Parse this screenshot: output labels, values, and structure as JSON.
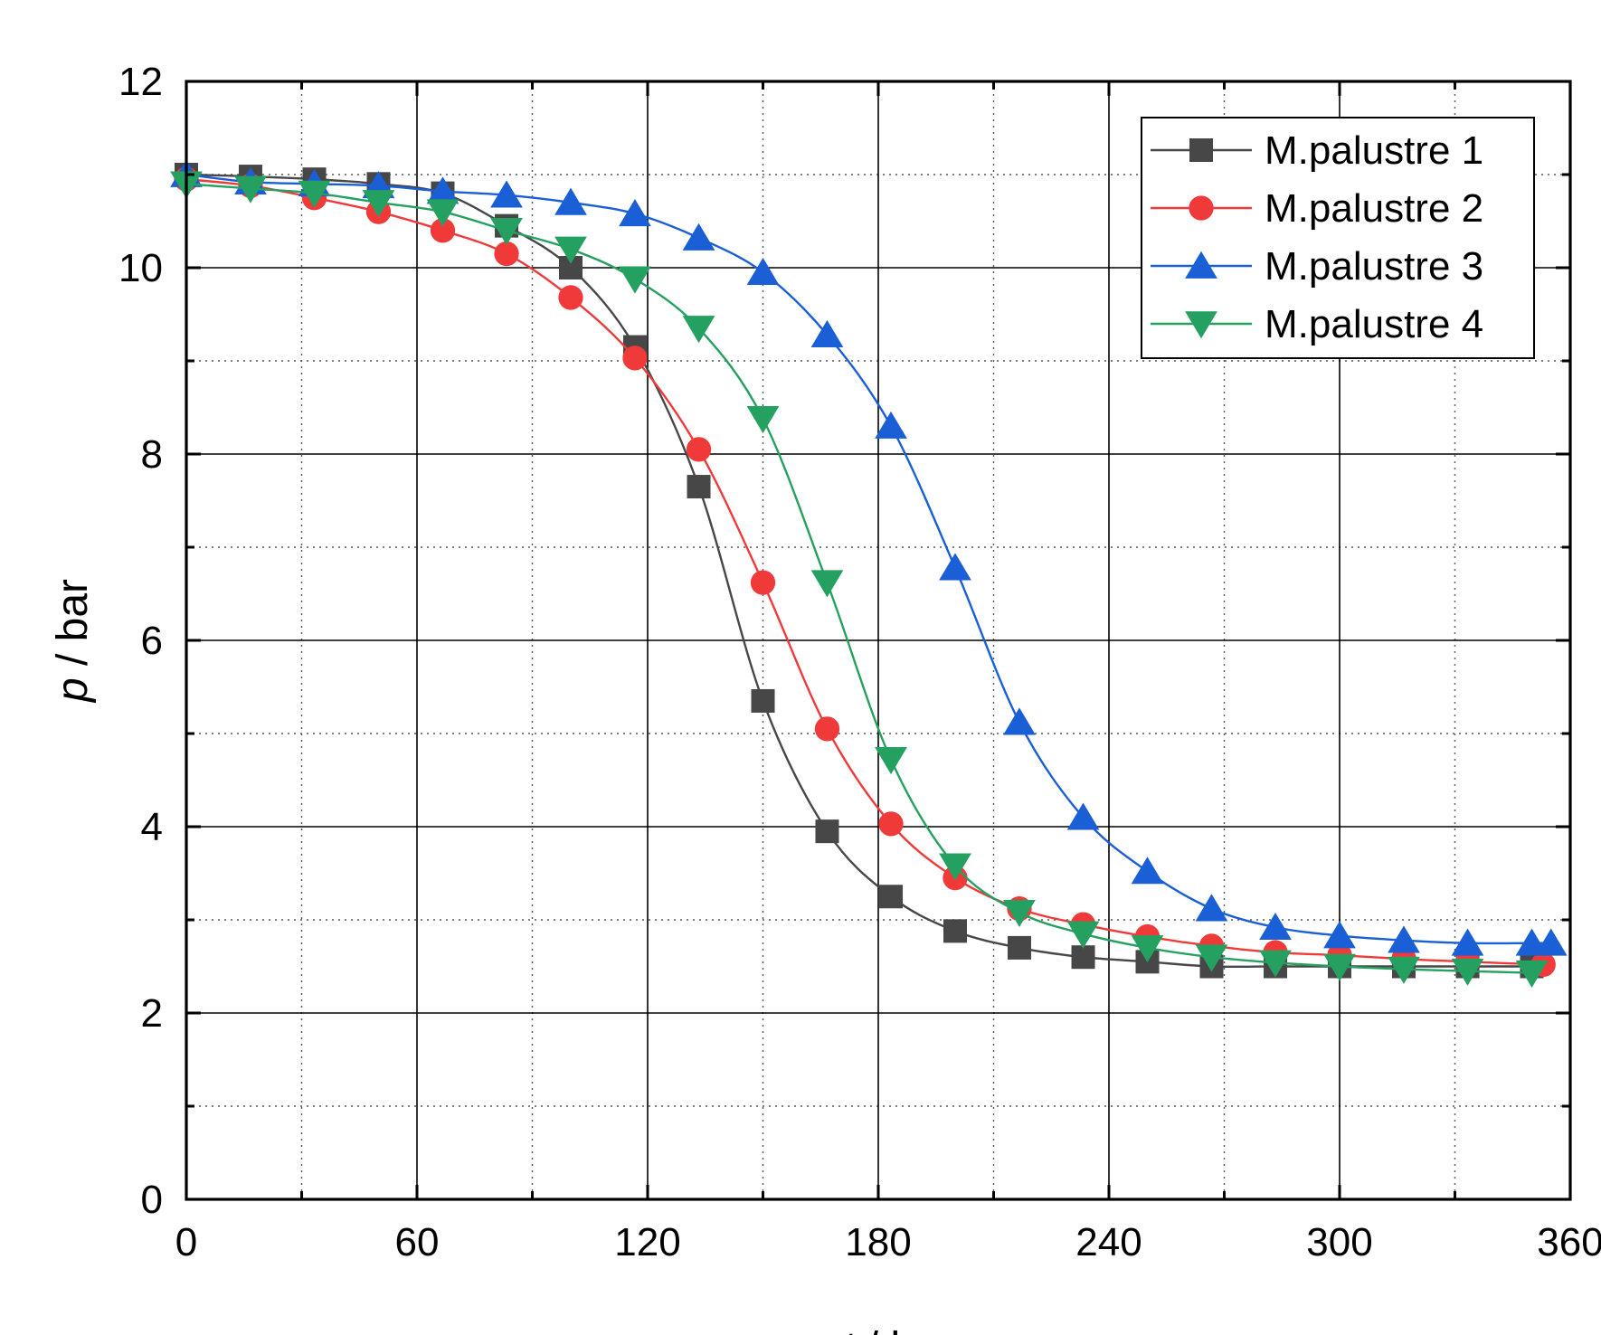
{
  "chart_data": {
    "type": "line",
    "title": "",
    "xlabel_var": "t",
    "xlabel_unit": " / h",
    "ylabel_var": "p",
    "ylabel_unit": " / bar",
    "xlim": [
      0,
      360
    ],
    "ylim": [
      0,
      12
    ],
    "x_ticks": [
      0,
      60,
      120,
      180,
      240,
      300,
      360
    ],
    "y_ticks": [
      0,
      2,
      4,
      6,
      8,
      10,
      12
    ],
    "x_tick_labels": [
      "0",
      "60",
      "120",
      "180",
      "240",
      "300",
      "360"
    ],
    "y_tick_labels": [
      "0",
      "2",
      "4",
      "6",
      "8",
      "10",
      "12"
    ],
    "grid": true,
    "legend_position": "top-right",
    "series": [
      {
        "name": "M.palustre 1",
        "color": "#474747",
        "marker": "square",
        "x": [
          0,
          16.7,
          33.3,
          50,
          66.7,
          83.3,
          100,
          116.7,
          133.3,
          150,
          166.7,
          183.3,
          200,
          216.7,
          233.3,
          250,
          266.7,
          283.3,
          300,
          316.7,
          333.3,
          350
        ],
        "y": [
          11.0,
          10.98,
          10.95,
          10.9,
          10.8,
          10.45,
          10.0,
          9.15,
          7.65,
          5.35,
          3.95,
          3.25,
          2.88,
          2.7,
          2.6,
          2.55,
          2.5,
          2.5,
          2.5,
          2.5,
          2.5,
          2.5
        ]
      },
      {
        "name": "M.palustre 2",
        "color": "#f03a3a",
        "marker": "circle",
        "x": [
          0,
          16.7,
          33.3,
          50,
          66.7,
          83.3,
          100,
          116.7,
          133.3,
          150,
          166.7,
          183.3,
          200,
          216.7,
          233.3,
          250,
          266.7,
          283.3,
          300,
          316.7,
          333.3,
          353
        ],
        "y": [
          10.95,
          10.88,
          10.75,
          10.6,
          10.4,
          10.15,
          9.68,
          9.03,
          8.05,
          6.62,
          5.05,
          4.03,
          3.45,
          3.12,
          2.95,
          2.82,
          2.72,
          2.65,
          2.62,
          2.58,
          2.55,
          2.52
        ]
      },
      {
        "name": "M.palustre 3",
        "color": "#1a5fd6",
        "marker": "triangle-up",
        "x": [
          0,
          16.7,
          33.3,
          50,
          66.7,
          83.3,
          100,
          116.7,
          133.3,
          150,
          166.7,
          183.3,
          200,
          216.7,
          233.3,
          250,
          266.7,
          283.3,
          300,
          316.7,
          333.3,
          350,
          355
        ],
        "y": [
          11.0,
          10.92,
          10.9,
          10.88,
          10.82,
          10.78,
          10.7,
          10.58,
          10.32,
          9.95,
          9.28,
          8.3,
          6.78,
          5.12,
          4.1,
          3.52,
          3.12,
          2.92,
          2.83,
          2.78,
          2.75,
          2.75,
          2.75
        ]
      },
      {
        "name": "M.palustre 4",
        "color": "#24a160",
        "marker": "triangle-down",
        "x": [
          0,
          16.7,
          33.3,
          50,
          66.7,
          83.3,
          100,
          116.7,
          133.3,
          150,
          166.7,
          183.3,
          200,
          216.7,
          233.3,
          250,
          266.7,
          283.3,
          300,
          316.7,
          333.3,
          350
        ],
        "y": [
          10.9,
          10.85,
          10.8,
          10.7,
          10.6,
          10.4,
          10.2,
          9.88,
          9.35,
          8.38,
          6.62,
          4.72,
          3.58,
          3.08,
          2.85,
          2.7,
          2.6,
          2.54,
          2.5,
          2.47,
          2.45,
          2.43
        ]
      }
    ]
  }
}
